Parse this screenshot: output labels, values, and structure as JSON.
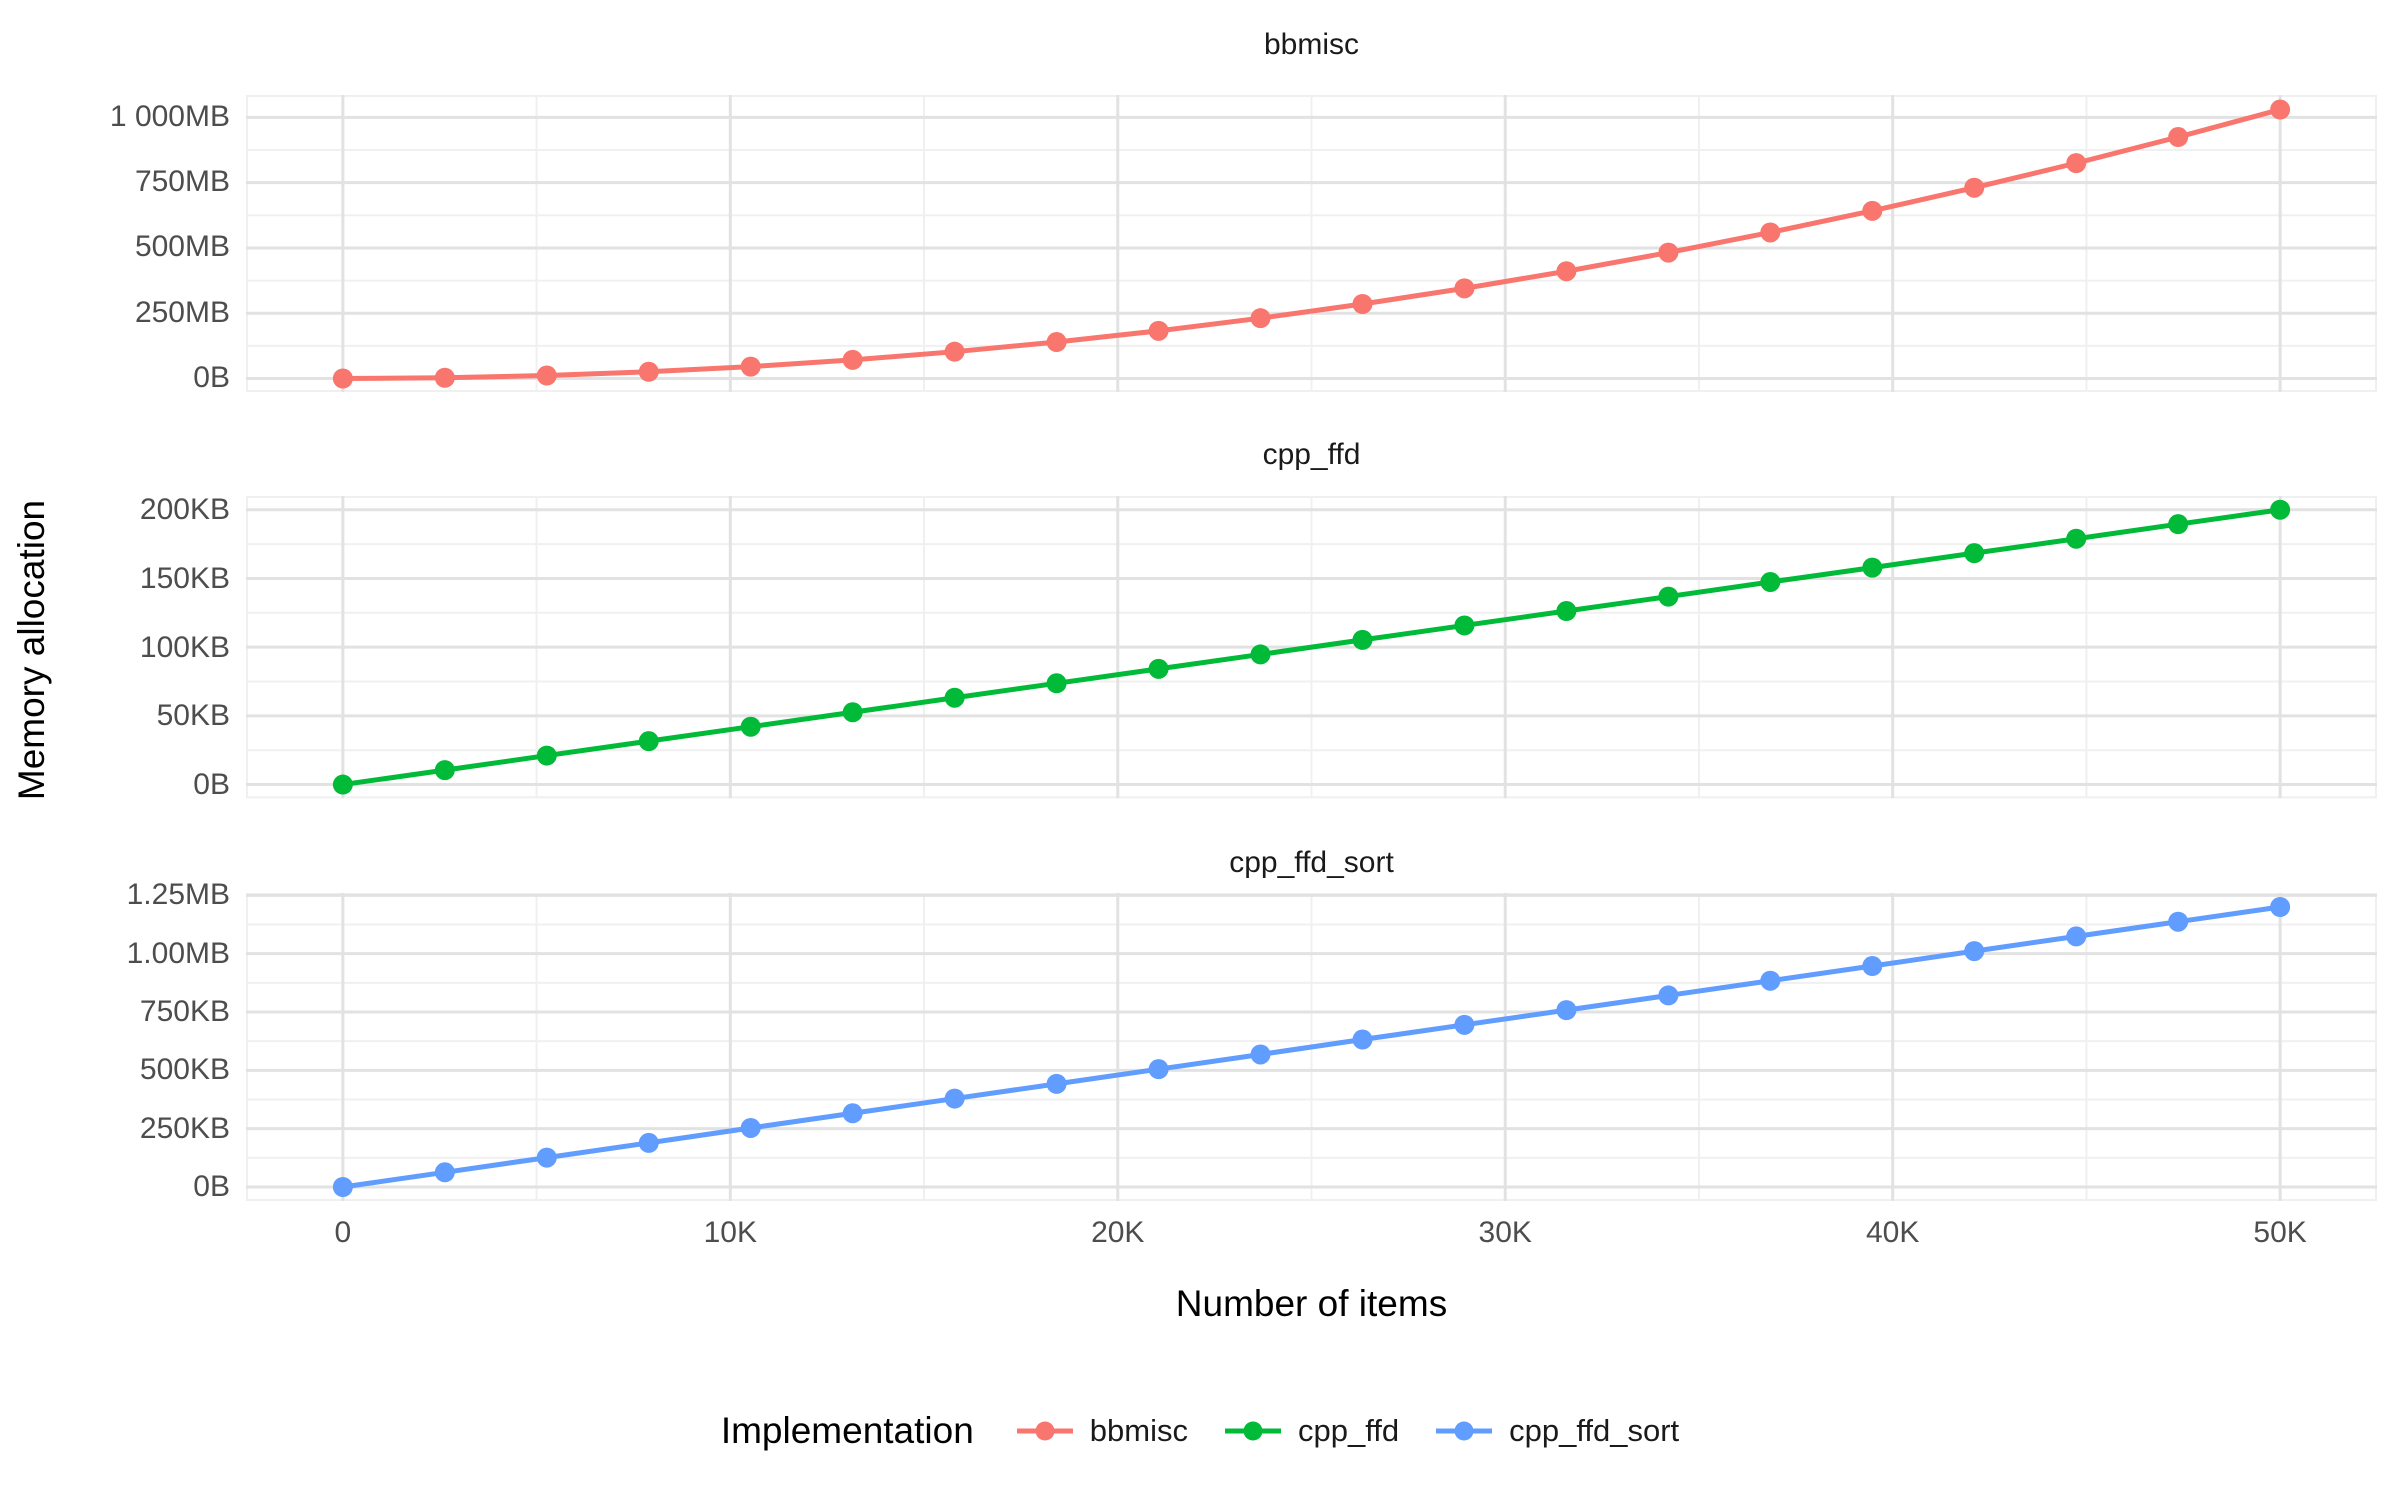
{
  "chart_data": {
    "type": "line",
    "xlabel": "Number of items",
    "ylabel": "Memory allocation",
    "legend": {
      "title": "Implementation",
      "entries": [
        {
          "label": "bbmisc",
          "color": "#F8766D"
        },
        {
          "label": "cpp_ffd",
          "color": "#00BA38"
        },
        {
          "label": "cpp_ffd_sort",
          "color": "#619CFF"
        }
      ]
    },
    "grid": {
      "major": "#e2e2e2",
      "minor": "#f0f0f0",
      "background": "#ffffff"
    },
    "x": [
      0,
      2632,
      5263,
      7895,
      10526,
      13158,
      15789,
      18421,
      21053,
      23684,
      26316,
      28947,
      31579,
      34211,
      36842,
      39474,
      42105,
      44737,
      47368,
      50000
    ],
    "xlim": [
      -2500,
      52500
    ],
    "xticks": [
      {
        "value": 0,
        "label": "0"
      },
      {
        "value": 10000,
        "label": "10K"
      },
      {
        "value": 20000,
        "label": "20K"
      },
      {
        "value": 30000,
        "label": "30K"
      },
      {
        "value": 40000,
        "label": "40K"
      },
      {
        "value": 50000,
        "label": "50K"
      }
    ],
    "xminor": [
      5000,
      15000,
      25000,
      35000,
      45000
    ],
    "facets": [
      {
        "title": "bbmisc",
        "color": "#F8766D",
        "unit": "MB",
        "ylim": [
          -51.7,
          1085.7
        ],
        "yticks": [
          {
            "value": 0,
            "label": "0B"
          },
          {
            "value": 250,
            "label": "250MB"
          },
          {
            "value": 500,
            "label": "500MB"
          },
          {
            "value": 750,
            "label": "750MB"
          },
          {
            "value": 1000,
            "label": "1 000MB"
          }
        ],
        "yminor": [
          125,
          375,
          625,
          875
        ],
        "values": [
          0,
          2.9,
          11.4,
          25.7,
          45.6,
          71.3,
          102.7,
          139.7,
          182.5,
          231.0,
          285.3,
          345.2,
          410.8,
          482.2,
          559.3,
          642.1,
          730.6,
          824.8,
          924.7,
          1030.0
        ]
      },
      {
        "title": "cpp_ffd",
        "color": "#00BA38",
        "unit": "KB",
        "ylim": [
          -10,
          210
        ],
        "yticks": [
          {
            "value": 0,
            "label": "0B"
          },
          {
            "value": 50,
            "label": "50KB"
          },
          {
            "value": 100,
            "label": "100KB"
          },
          {
            "value": 150,
            "label": "150KB"
          },
          {
            "value": 200,
            "label": "200KB"
          }
        ],
        "yminor": [
          25,
          75,
          125,
          175
        ],
        "values": [
          0,
          10.5,
          21.1,
          31.6,
          42.1,
          52.6,
          63.2,
          73.7,
          84.2,
          94.7,
          105.3,
          115.8,
          126.3,
          136.8,
          147.4,
          157.9,
          168.4,
          178.9,
          189.5,
          200.0
        ]
      },
      {
        "title": "cpp_ffd_sort",
        "color": "#619CFF",
        "unit": "MB",
        "ylim": [
          -0.06,
          1.26
        ],
        "yticks": [
          {
            "value": 0,
            "label": "0B"
          },
          {
            "value": 0.25,
            "label": "250KB"
          },
          {
            "value": 0.5,
            "label": "500KB"
          },
          {
            "value": 0.75,
            "label": "750KB"
          },
          {
            "value": 1.0,
            "label": "1.00MB"
          },
          {
            "value": 1.25,
            "label": "1.25MB"
          }
        ],
        "yminor": [
          0.125,
          0.375,
          0.625,
          0.875,
          1.125
        ],
        "values": [
          0,
          0.063,
          0.126,
          0.189,
          0.253,
          0.316,
          0.379,
          0.442,
          0.505,
          0.568,
          0.632,
          0.695,
          0.758,
          0.821,
          0.884,
          0.947,
          1.011,
          1.074,
          1.137,
          1.2
        ]
      }
    ]
  }
}
